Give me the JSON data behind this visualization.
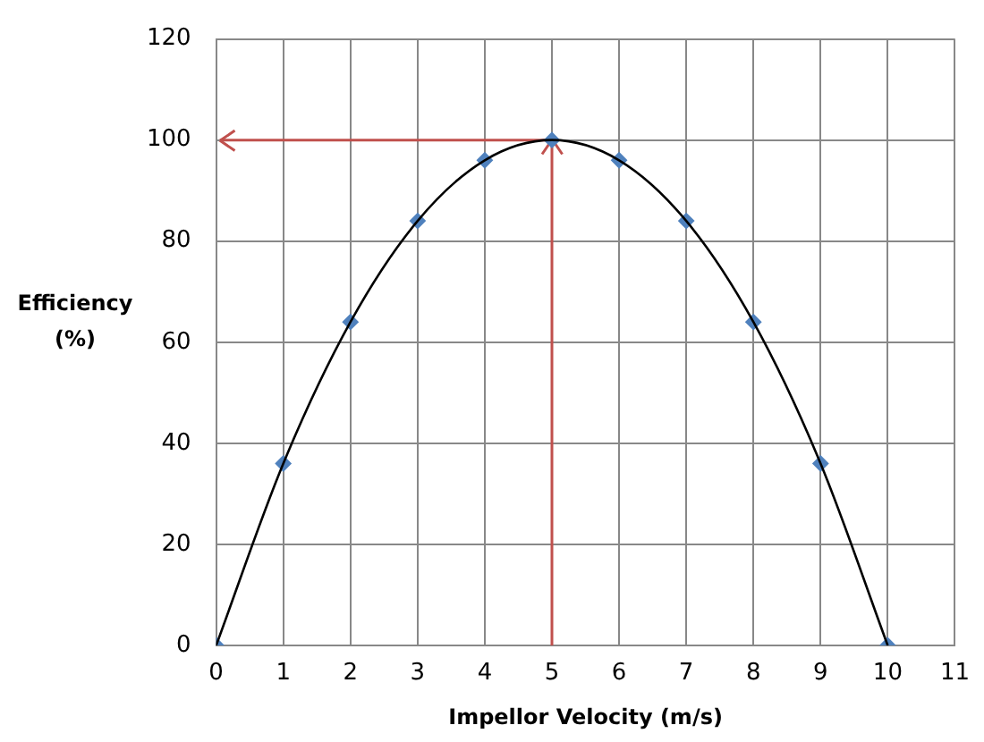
{
  "chart_data": {
    "type": "scatter",
    "xlabel": "Impellor Velocity (m/s)",
    "ylabel": "Efficiency\n(%)",
    "x": [
      0,
      1,
      2,
      3,
      4,
      5,
      6,
      7,
      8,
      9,
      10
    ],
    "series": [
      {
        "type": "line",
        "color": "#000000",
        "marker": "none",
        "values": [
          0,
          36,
          64,
          84,
          96,
          100,
          96,
          84,
          64,
          36,
          0
        ]
      },
      {
        "type": "scatter",
        "color": "#4f81bd",
        "marker": "diamond",
        "values": [
          0,
          36,
          64,
          84,
          96,
          100,
          96,
          84,
          64,
          36,
          0
        ]
      }
    ],
    "xlim": [
      0,
      11
    ],
    "xticks": [
      0,
      1,
      2,
      3,
      4,
      5,
      6,
      7,
      8,
      9,
      10,
      11
    ],
    "ylim": [
      0,
      120
    ],
    "yticks": [
      0,
      20,
      40,
      60,
      80,
      100,
      120
    ],
    "grid": true,
    "legend": false,
    "ref_lines": [
      {
        "axis": "x",
        "value": 5,
        "color": "#c0504d"
      },
      {
        "axis": "y",
        "value": 100,
        "color": "#c0504d"
      }
    ]
  }
}
